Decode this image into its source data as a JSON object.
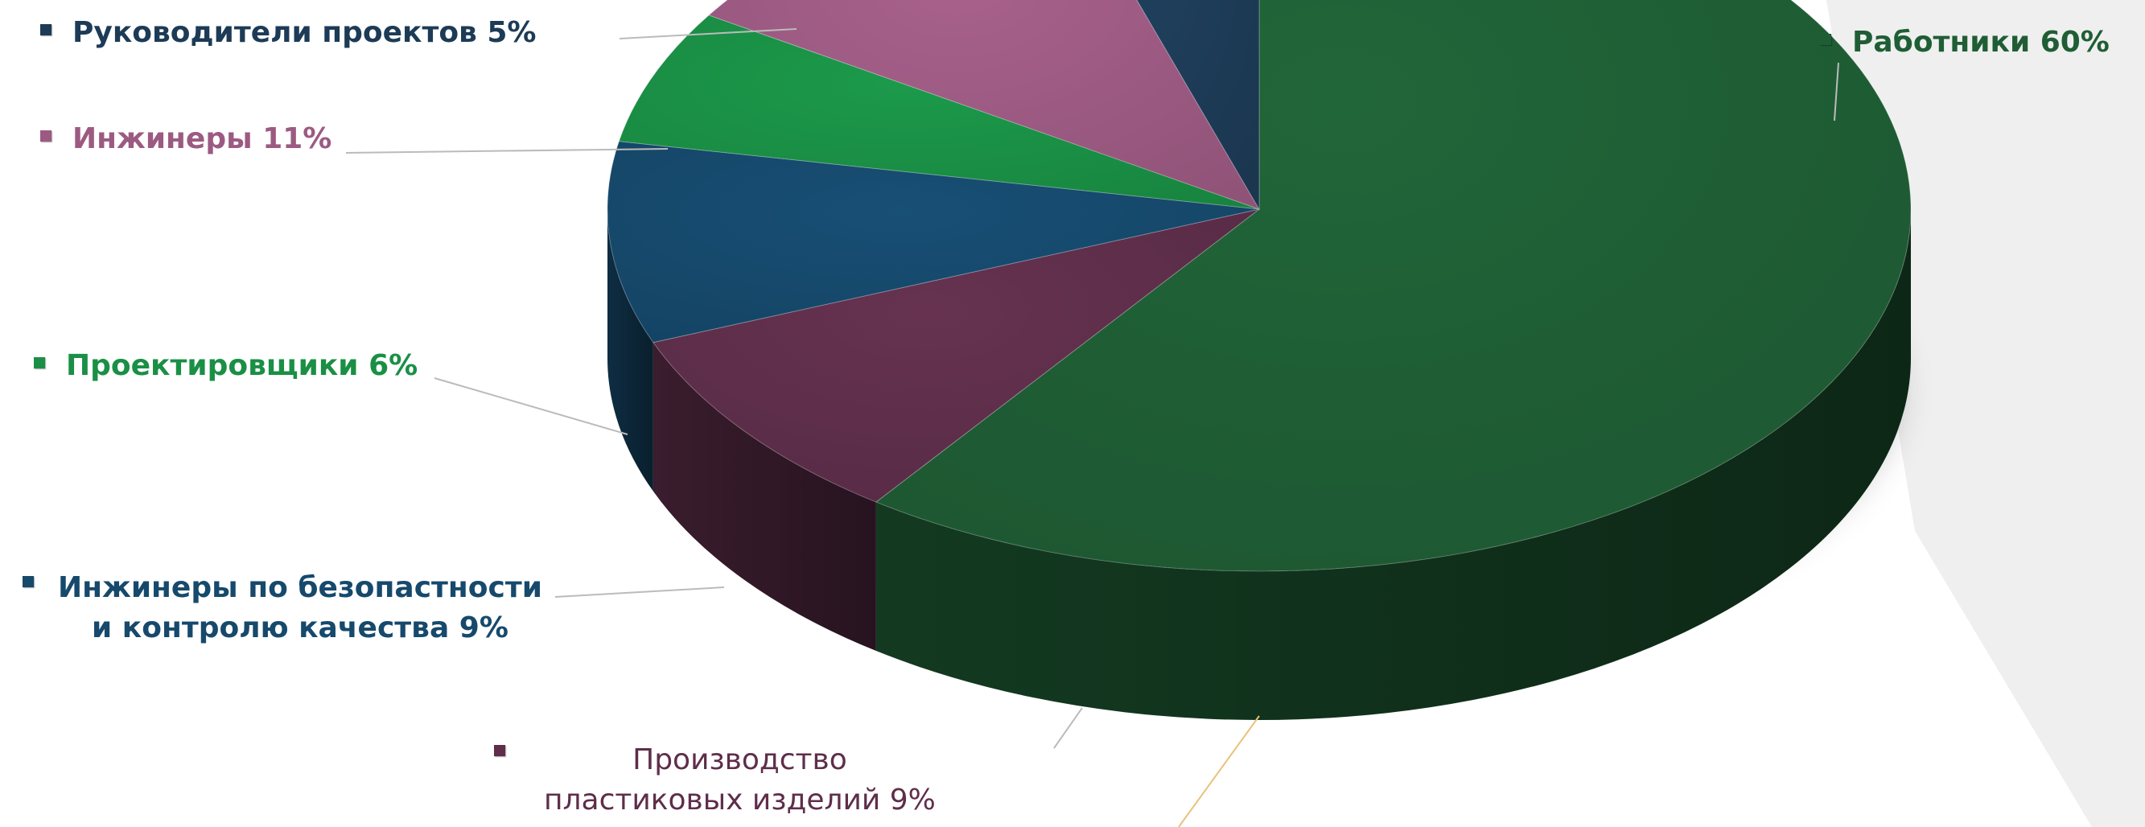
{
  "chart_data": {
    "type": "pie",
    "three_d": true,
    "start_angle_deg": -90,
    "slices": [
      {
        "label": "Работники",
        "value": 60,
        "display": "Работники  60%",
        "color": "#1f5e35",
        "text_color": "#1f5e35"
      },
      {
        "label": "Производство пластиковых изделий",
        "value": 9,
        "display_lines": [
          "Производство",
          "пластиковых изделий 9%"
        ],
        "color": "#5e2e4a",
        "text_color": "#5e2e4a"
      },
      {
        "label": "Инжинеры по безопастности и контролю качества",
        "value": 9,
        "display_lines": [
          "Инжинеры по безопастности",
          "и контролю качества 9%"
        ],
        "color": "#16496c",
        "text_color": "#16496c"
      },
      {
        "label": "Проектировщики",
        "value": 6,
        "display": "Проектировщики 6%",
        "color": "#1a8f45",
        "text_color": "#1a8f45"
      },
      {
        "label": "Инжинеры",
        "value": 11,
        "display": "Инжинеры 11%",
        "color": "#9c5a82",
        "text_color": "#9c5a82"
      },
      {
        "label": "Руководители проектов",
        "value": 5,
        "display": "Руководители проектов 5%",
        "color": "#1d3b56",
        "text_color": "#1d3b56"
      }
    ]
  }
}
